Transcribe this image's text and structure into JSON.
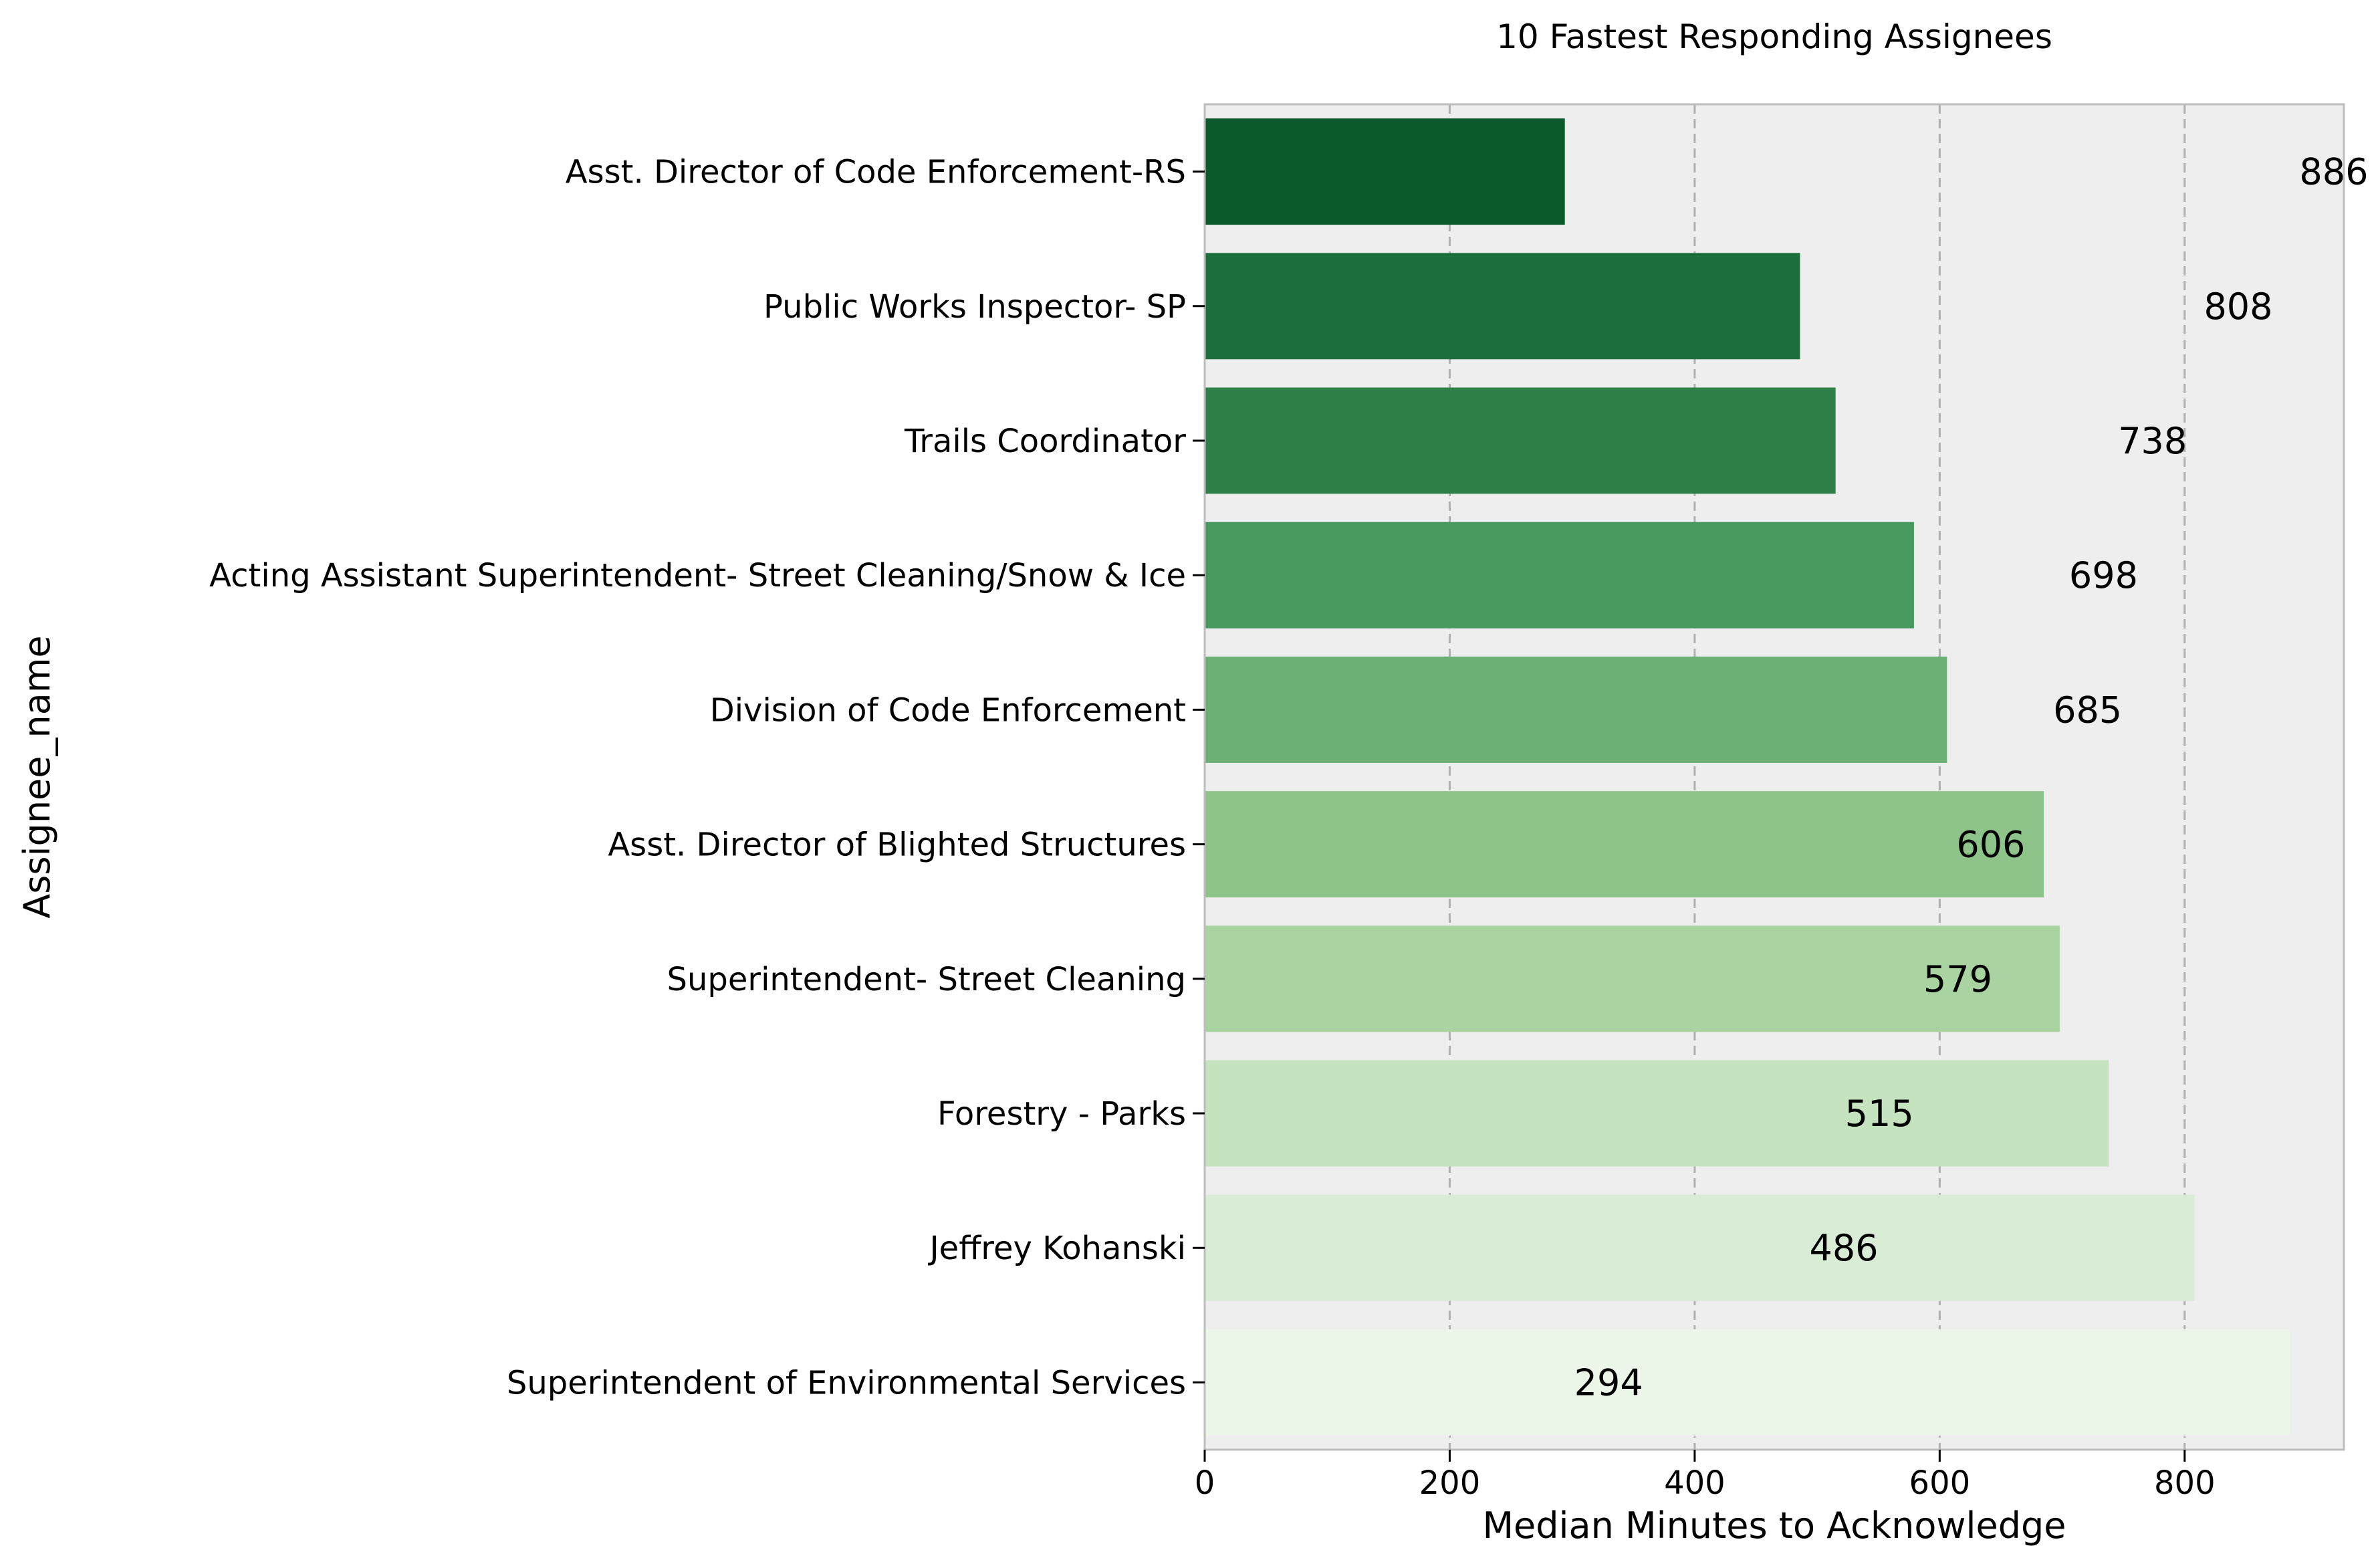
{
  "chart_data": {
    "type": "bar",
    "orientation": "horizontal",
    "title": "10 Fastest Responding Assignees",
    "xlabel": "Median Minutes to Acknowledge",
    "ylabel": "Assignee_name",
    "xlim": [
      0,
      930
    ],
    "xticks": [
      0,
      200,
      400,
      600,
      800
    ],
    "grid": "x-dashed",
    "legend": "none",
    "categories": [
      "Asst. Director of Code Enforcement-RS",
      "Public Works Inspector- SP",
      "Trails Coordinator",
      "Acting Assistant Superintendent- Street Cleaning/Snow & Ice",
      "Division of Code Enforcement",
      "Asst. Director of Blighted Structures",
      "Superintendent- Street Cleaning",
      "Forestry - Parks",
      "Jeffrey Kohanski",
      "Superintendent of Environmental Services"
    ],
    "values": [
      294,
      486,
      515,
      579,
      606,
      685,
      698,
      738,
      808,
      886
    ],
    "data_labels": [
      "886",
      "808",
      "738",
      "698",
      "685",
      "606",
      "579",
      "515",
      "486",
      "294"
    ],
    "label_positions": [
      886,
      808,
      738,
      698,
      685,
      606,
      579,
      515,
      486,
      294
    ],
    "colors": [
      "#0b5a2c",
      "#1c6f3c",
      "#2f7f48",
      "#47995d",
      "#6baf74",
      "#8ec48a",
      "#a9d4a1",
      "#c5e3bf",
      "#d9ecd5",
      "#ebf5e8"
    ],
    "plot_background": "#eeeeee",
    "grid_color": "#b0b0b0"
  }
}
